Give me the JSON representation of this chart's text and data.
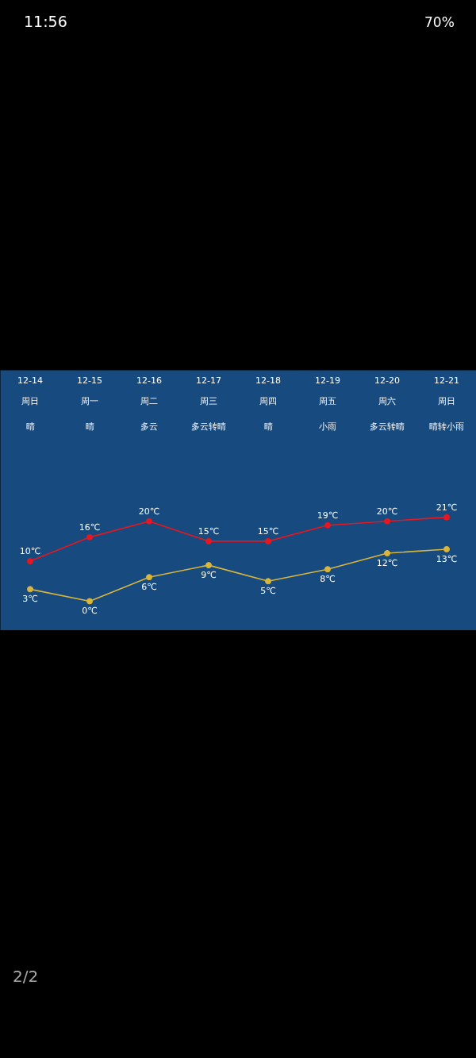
{
  "chart_data": {
    "type": "line",
    "categories": [
      "12-14",
      "12-15",
      "12-16",
      "12-17",
      "12-18",
      "12-19",
      "12-20",
      "12-21"
    ],
    "series": [
      {
        "color": "#e8161e",
        "values": [
          10,
          16,
          20,
          15,
          15,
          19,
          20,
          21
        ],
        "value_labels": [
          "10℃",
          "16℃",
          "20℃",
          "15℃",
          "15℃",
          "19℃",
          "20℃",
          "21℃"
        ]
      },
      {
        "color": "#d9b53c",
        "values": [
          3,
          0,
          6,
          9,
          5,
          8,
          12,
          13
        ],
        "value_labels": [
          "3℃",
          "0℃",
          "6℃",
          "9℃",
          "5℃",
          "8℃",
          "12℃",
          "13℃"
        ]
      }
    ],
    "marker": "circle",
    "line_style": "solid",
    "grid": false,
    "tick_labels": "x",
    "annotations": [
      "11:56",
      "70%",
      "2/2",
      "周日",
      "周一",
      "周二",
      "周三",
      "周四",
      "周五",
      "周六",
      "周日",
      "晴",
      "晴",
      "多云",
      "多云转晴",
      "晴",
      "小雨",
      "多云转晴",
      "晴转小雨"
    ]
  }
}
